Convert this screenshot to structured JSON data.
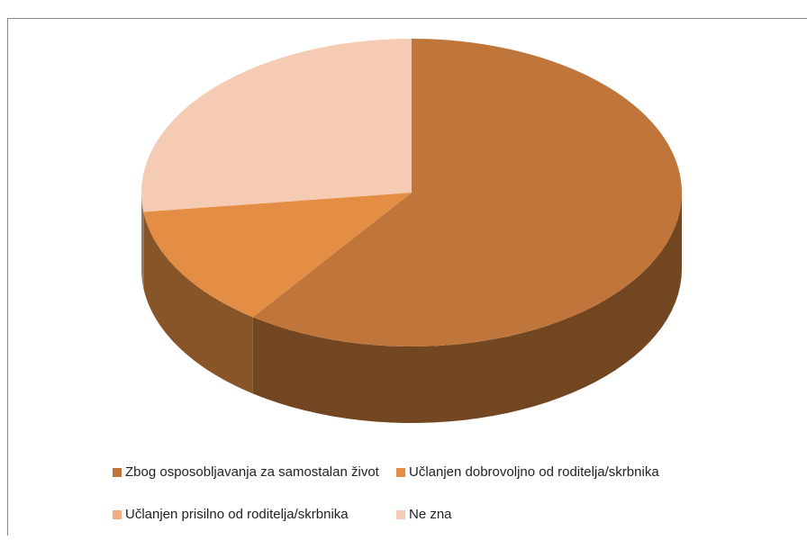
{
  "chart_data": {
    "type": "pie",
    "categories": [
      "Zbog osposobljavanja za samostalan život",
      "Učlanjen dobrovoljno od roditelja/skrbnika",
      "Učlanjen prisilno od roditelja/skrbnika",
      "Ne zna"
    ],
    "values": [
      60,
      13,
      0,
      27
    ],
    "colors": [
      "#c0763a",
      "#e48e45",
      "#f3ab82",
      "#f6cbb3"
    ],
    "legend": "bottom"
  }
}
